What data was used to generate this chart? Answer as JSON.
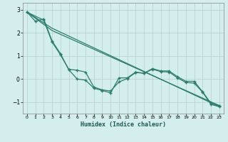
{
  "title": "",
  "xlabel": "Humidex (Indice chaleur)",
  "ylabel": "",
  "bg_color": "#d4eeee",
  "line_color": "#2d7d6e",
  "grid_color": "#b8d4d4",
  "spine_color": "#888888",
  "xlim": [
    -0.5,
    23.5
  ],
  "ylim": [
    -1.5,
    3.3
  ],
  "xticks": [
    0,
    1,
    2,
    3,
    4,
    5,
    6,
    7,
    8,
    9,
    10,
    11,
    12,
    13,
    14,
    15,
    16,
    17,
    18,
    19,
    20,
    21,
    22,
    23
  ],
  "yticks": [
    -1,
    0,
    1,
    2,
    3
  ],
  "line1_x": [
    0,
    1,
    2,
    3,
    4,
    5,
    6,
    7,
    8,
    9,
    10,
    11,
    12,
    13,
    14,
    15,
    16,
    17,
    18,
    19,
    20,
    21,
    22,
    23
  ],
  "line1_y": [
    2.9,
    2.5,
    2.6,
    1.65,
    1.1,
    0.4,
    -0.0,
    -0.05,
    -0.4,
    -0.5,
    -0.6,
    0.05,
    0.05,
    0.3,
    0.25,
    0.45,
    0.35,
    0.35,
    0.1,
    -0.1,
    -0.1,
    -0.55,
    -1.05,
    -1.15
  ],
  "line2_x": [
    0,
    2,
    3,
    4,
    5,
    6,
    7,
    8,
    9,
    10,
    11,
    12,
    13,
    14,
    15,
    16,
    17,
    18,
    19,
    20,
    21,
    22,
    23
  ],
  "line2_y": [
    2.9,
    2.55,
    1.6,
    1.05,
    0.42,
    0.38,
    0.3,
    -0.35,
    -0.47,
    -0.52,
    -0.13,
    0.02,
    0.28,
    0.25,
    0.42,
    0.32,
    0.3,
    0.05,
    -0.15,
    -0.18,
    -0.57,
    -1.1,
    -1.2
  ],
  "line3_x": [
    0,
    3,
    23
  ],
  "line3_y": [
    2.9,
    2.1,
    -1.15
  ],
  "line4_x": [
    0,
    3,
    23
  ],
  "line4_y": [
    2.9,
    2.2,
    -1.2
  ]
}
